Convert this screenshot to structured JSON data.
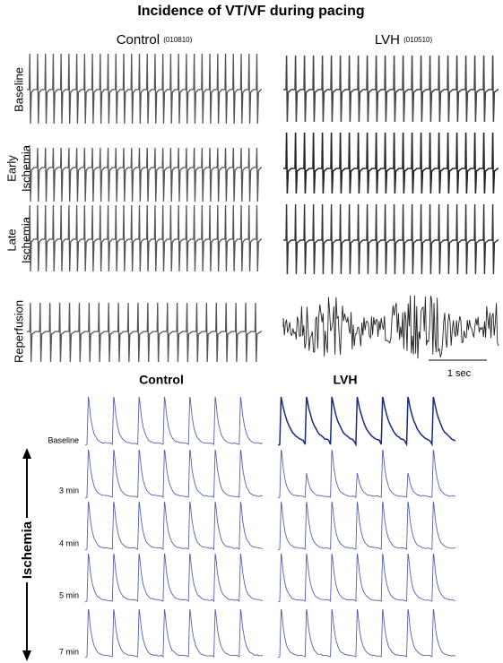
{
  "title": "Incidence of VT/VF during pacing",
  "top_panel": {
    "columns": [
      {
        "label": "Control",
        "id": "(010810)"
      },
      {
        "label": "LVH",
        "id": "(010510)"
      }
    ],
    "rows": [
      [
        "Baseline"
      ],
      [
        "Early",
        "Ischemia"
      ],
      [
        "Late",
        "Ischemia"
      ],
      [
        "Reperfusion"
      ]
    ],
    "scale_bar": "1 sec"
  },
  "bottom_panel": {
    "columns": [
      "Control",
      "LVH"
    ],
    "rows": [
      "Baseline",
      "3 min",
      "4 min",
      "5 min",
      "7 min"
    ],
    "axis_label": "Ischemia"
  }
}
